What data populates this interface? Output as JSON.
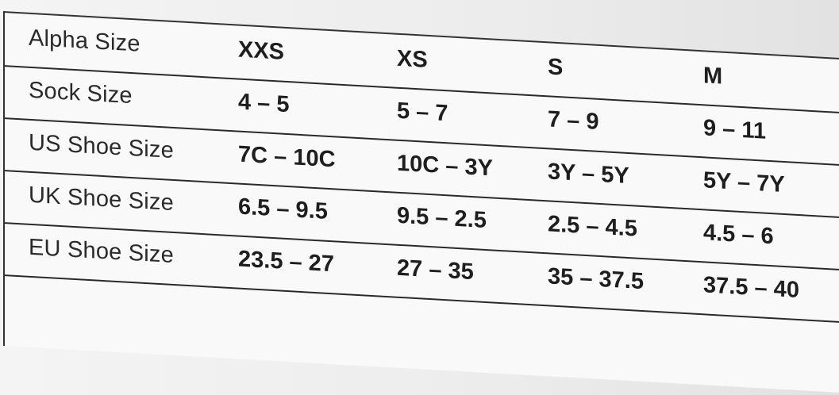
{
  "table": {
    "rows": [
      {
        "label": "Alpha Size",
        "values": [
          "XXS",
          "XS",
          "S",
          "M"
        ]
      },
      {
        "label": "Sock Size",
        "values": [
          "4 – 5",
          "5 – 7",
          "7 – 9",
          "9 – 11"
        ]
      },
      {
        "label": "US Shoe Size",
        "values": [
          "7C – 10C",
          "10C – 3Y",
          "3Y – 5Y",
          "5Y – 7Y"
        ]
      },
      {
        "label": "UK Shoe Size",
        "values": [
          "6.5 – 9.5",
          "9.5 – 2.5",
          "2.5 – 4.5",
          "4.5 – 6"
        ]
      },
      {
        "label": "EU Shoe Size",
        "values": [
          "23.5 – 27",
          "27 – 35",
          "35 – 37.5",
          "37.5 – 40"
        ]
      }
    ]
  }
}
